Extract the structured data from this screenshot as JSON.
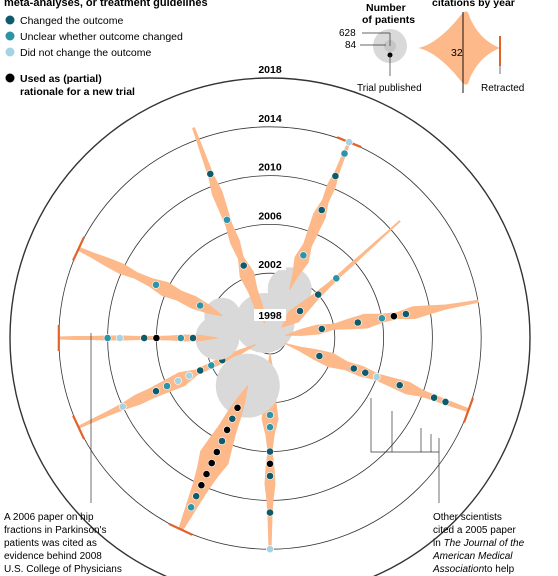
{
  "legend": {
    "heading": "meta-analyses, or treatment guidelines",
    "items": [
      {
        "label": "Changed the outcome",
        "color": "#0f5a6b"
      },
      {
        "label": "Unclear whether outcome changed",
        "color": "#2b94a8"
      },
      {
        "label": "Did not change the outcome",
        "color": "#a6d3e3"
      }
    ],
    "rationale_label_1": "Used as (partial)",
    "rationale_label_2": "rationale for a new trial",
    "rationale_color": "#000000"
  },
  "key": {
    "patients_title_1": "Number",
    "patients_title_2": "of patients",
    "patients_values": [
      "628",
      "84"
    ],
    "trial_published": "Trial published",
    "citations_title": "citations by year",
    "citations_value": "32",
    "retracted": "Retracted"
  },
  "colors": {
    "body": "#fdb98a",
    "retract": "#e0632a",
    "ring": "#333333",
    "circle": "#d9d9d9"
  },
  "chart_data": {
    "type": "radial",
    "rings": [
      "1998",
      "2002",
      "2006",
      "2010",
      "2014",
      "2018"
    ],
    "trials": [
      {
        "angle": 110,
        "start": 1998,
        "end": 2015,
        "circle": 30,
        "widths": [
          0,
          8,
          9,
          14,
          5,
          9,
          6,
          8,
          10,
          5,
          4,
          3,
          2
        ],
        "dots": [
          [
            2003,
            "changed"
          ],
          [
            2007,
            "unclear"
          ],
          [
            2011,
            "changed"
          ]
        ]
      },
      {
        "angle": 68,
        "start": 2001,
        "end": 2014,
        "circle": 22,
        "widths": [
          0,
          6,
          14,
          8,
          10,
          12,
          6,
          8,
          4,
          3,
          2
        ],
        "dots": [
          [
            2004,
            "unclear"
          ],
          [
            2008,
            "changed"
          ],
          [
            2011,
            "changed"
          ],
          [
            2013,
            "unclear"
          ],
          [
            2014,
            "notchanged"
          ]
        ],
        "retracted": true
      },
      {
        "angle": 42,
        "start": 1998,
        "end": 2011,
        "circle": 0,
        "widths": [
          0,
          14,
          10,
          6,
          4,
          3,
          3,
          2,
          2,
          1,
          1
        ],
        "dots": [
          [
            2000,
            "changed"
          ],
          [
            2002,
            "changed"
          ],
          [
            2004,
            "unclear"
          ]
        ]
      },
      {
        "angle": 10,
        "start": 1998,
        "end": 2014,
        "circle": 0,
        "widths": [
          0,
          6,
          9,
          5,
          10,
          14,
          8,
          6,
          12,
          8,
          4,
          3,
          2
        ],
        "dots": [
          [
            2001,
            "changed"
          ],
          [
            2004,
            "changed"
          ],
          [
            2006,
            "unclear"
          ],
          [
            2007,
            "black"
          ],
          [
            2008,
            "changed"
          ]
        ]
      },
      {
        "angle": -20,
        "start": 1998,
        "end": 2014,
        "circle": 0,
        "widths": [
          0,
          4,
          10,
          14,
          8,
          10,
          6,
          9,
          12,
          6,
          5,
          4,
          3
        ],
        "dots": [
          [
            2001,
            "changed"
          ],
          [
            2004,
            "changed"
          ],
          [
            2005,
            "changed"
          ],
          [
            2006,
            "notchanged"
          ],
          [
            2008,
            "changed"
          ],
          [
            2011,
            "changed"
          ],
          [
            2012,
            "changed"
          ]
        ],
        "retracted": true
      },
      {
        "angle": -90,
        "start": 1998,
        "end": 2014,
        "circle": 0,
        "widths": [
          0,
          6,
          10,
          12,
          16,
          8,
          4,
          8,
          10,
          6,
          4,
          3,
          2
        ],
        "dots": [
          [
            2003,
            "unclear"
          ],
          [
            2004,
            "unclear"
          ],
          [
            2006,
            "changed"
          ],
          [
            2007,
            "black"
          ],
          [
            2008,
            "changed"
          ],
          [
            2011,
            "changed"
          ],
          [
            2014,
            "notchanged"
          ]
        ]
      },
      {
        "angle": -155,
        "start": 1998,
        "end": 2014,
        "circle": 0,
        "widths": [
          0,
          4,
          6,
          5,
          5,
          14,
          12,
          10,
          10,
          6,
          4,
          3,
          2
        ],
        "dots": [
          [
            2001,
            "changed"
          ],
          [
            2002,
            "unclear"
          ],
          [
            2003,
            "changed"
          ],
          [
            2004,
            "notchanged"
          ],
          [
            2005,
            "notchanged"
          ],
          [
            2006,
            "unclear"
          ],
          [
            2007,
            "changed"
          ],
          [
            2010,
            "notchanged"
          ]
        ],
        "retracted": true
      },
      {
        "angle": 180,
        "start": 2001,
        "end": 2014,
        "circle": 22,
        "widths": [
          0,
          5,
          6,
          4,
          3,
          3,
          4,
          4,
          3,
          3,
          2
        ],
        "dots": [
          [
            2003,
            "changed"
          ],
          [
            2004,
            "unclear"
          ],
          [
            2006,
            "black"
          ],
          [
            2007,
            "changed"
          ],
          [
            2009,
            "notchanged"
          ],
          [
            2010,
            "unclear"
          ]
        ],
        "retracted": true
      },
      {
        "angle": 155,
        "start": 2001,
        "end": 2014,
        "circle": 18,
        "widths": [
          0,
          8,
          12,
          10,
          14,
          8,
          6,
          10,
          8,
          5,
          3
        ],
        "dots": [
          [
            2003,
            "unclear"
          ],
          [
            2007,
            "unclear"
          ]
        ],
        "retracted": true
      },
      {
        "angle": -115,
        "start": 2001,
        "end": 2014,
        "circle": 32,
        "widths": [
          0,
          8,
          14,
          18,
          24,
          30,
          22,
          16,
          12,
          8,
          4
        ],
        "dots": [
          [
            2003,
            "black"
          ],
          [
            2004,
            "changed"
          ],
          [
            2005,
            "black"
          ],
          [
            2006,
            "changed"
          ],
          [
            2007,
            "black"
          ],
          [
            2008,
            "black"
          ],
          [
            2009,
            "black"
          ],
          [
            2010,
            "black"
          ],
          [
            2011,
            "changed"
          ],
          [
            2012,
            "unclear"
          ]
        ],
        "retracted": true
      }
    ]
  },
  "notes": {
    "left": [
      "A 2006 paper on hip",
      "fractions in Parkinson's",
      "patients was cited as",
      "evidence behind 2008",
      "U.S. College of Physicians"
    ],
    "right_1": "Other scientists",
    "right_2": "cited a 2005 paper",
    "right_3": "in",
    "right_3_italic": "The Journal of the",
    "right_4_italic": "American Medical",
    "right_5_italic": "Association",
    "right_5_tail": "to help"
  }
}
